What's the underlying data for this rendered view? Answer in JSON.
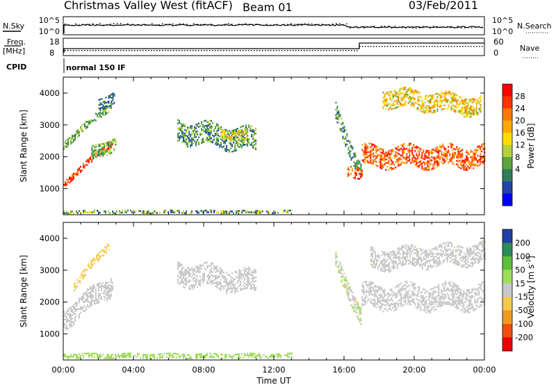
{
  "header": {
    "station": "Christmas Valley West (fitACF)",
    "beam": "Beam 01",
    "date": "03/Feb/2011"
  },
  "top_panels": {
    "nsky_label": "N.Sky",
    "nsearch_label": "N.Search",
    "nsky_ticks": [
      "10^5",
      "10^0"
    ],
    "nsearch_ticks": [
      "10^5",
      "10^0"
    ],
    "freq_label": "Freq.",
    "freq_unit": "[MHz]",
    "freq_ticks": [
      "18",
      "8"
    ],
    "nave_label": "Nave",
    "nave_ticks": [
      "60",
      "0"
    ],
    "cpid_label": "CPID",
    "cpid_value": "normal 150 IF"
  },
  "power_colorbar": {
    "label": "Power [dB]",
    "ticks": [
      "28",
      "24",
      "20",
      "16",
      "12",
      "8",
      "4"
    ],
    "colors": [
      "#ff0000",
      "#ff3300",
      "#ff7700",
      "#ffaa00",
      "#ffdd00",
      "#b5d23a",
      "#5aa53c",
      "#2e7d5a",
      "#2244aa",
      "#0000ff"
    ]
  },
  "velocity_colorbar": {
    "label": "Velocity [m s",
    "label_sup": "-1",
    "label_end": "]",
    "ticks": [
      "200",
      "100",
      "50",
      "15",
      "-15",
      "-50",
      "-100",
      "-200"
    ],
    "colors": [
      "#1f3fa6",
      "#2e8b57",
      "#5cbf3a",
      "#9fde5a",
      "#c8c8c8",
      "#f6c94c",
      "#f29a1f",
      "#f24d10",
      "#ee0000"
    ]
  },
  "chart_data": [
    {
      "type": "heatmap",
      "name": "power",
      "title": "",
      "xlabel": "",
      "ylabel": "Slant Range [km]",
      "xlim": [
        0,
        24
      ],
      "ylim": [
        180,
        4500
      ],
      "yticks": [
        "4000",
        "3000",
        "2000",
        "1000"
      ],
      "ytick_values": [
        4000,
        3000,
        2000,
        1000
      ],
      "colorbar": "Power [dB]",
      "clim": [
        0,
        30
      ],
      "regions": [
        {
          "t": [
            0.0,
            2.8
          ],
          "r0": [
            1150,
            2450
          ],
          "r1": [
            1250,
            2650
          ],
          "w": 200,
          "v": 26,
          "dv": 4
        },
        {
          "t": [
            0.0,
            2.7
          ],
          "r0": [
            2350,
            3600
          ],
          "r1": [
            2450,
            3750
          ],
          "w": 220,
          "v": 10,
          "dv": 4
        },
        {
          "t": [
            1.6,
            3.0
          ],
          "r0": [
            2050,
            2450
          ],
          "r1": [
            2050,
            2600
          ],
          "w": 400,
          "v": 11,
          "dv": 5
        },
        {
          "t": [
            2.0,
            2.9
          ],
          "r0": [
            3600,
            3900
          ],
          "r1": [
            3600,
            4200
          ],
          "w": 350,
          "v": 6,
          "dv": 3
        },
        {
          "t": [
            6.5,
            11.0
          ],
          "r0": [
            2800,
            2500
          ],
          "r1": [
            2800,
            2500
          ],
          "w": 700,
          "v": 9,
          "dv": 5
        },
        {
          "t": [
            9.0,
            10.5
          ],
          "r0": [
            2700,
            2650
          ],
          "r1": [
            2700,
            2650
          ],
          "w": 300,
          "v": 16,
          "dv": 5
        },
        {
          "t": [
            15.5,
            17.0
          ],
          "r0": [
            3400,
            1350
          ],
          "r1": [
            3400,
            1350
          ],
          "w": 500,
          "v": 8,
          "dv": 5
        },
        {
          "t": [
            16.2,
            17.0
          ],
          "r0": [
            1600,
            1400
          ],
          "r1": [
            1600,
            1400
          ],
          "w": 350,
          "v": 24,
          "dv": 5
        },
        {
          "t": [
            17.0,
            24.0
          ],
          "r0": [
            2000,
            2000
          ],
          "r1": [
            1900,
            1900
          ],
          "w": 650,
          "v": 24,
          "dv": 5
        },
        {
          "t": [
            18.2,
            23.8
          ],
          "r0": [
            3850,
            3550
          ],
          "r1": [
            3850,
            3550
          ],
          "w": 550,
          "v": 17,
          "dv": 6
        },
        {
          "t": [
            0.0,
            13.0
          ],
          "r0": [
            260,
            260
          ],
          "r1": [
            260,
            260
          ],
          "w": 90,
          "v": 10,
          "dv": 7
        }
      ]
    },
    {
      "type": "heatmap",
      "name": "velocity",
      "title": "",
      "xlabel": "Time UT",
      "ylabel": "Slant Range [km]",
      "xlim": [
        0,
        24
      ],
      "ylim": [
        180,
        4500
      ],
      "xticks": [
        "00:00",
        "04:00",
        "08:00",
        "12:00",
        "16:00",
        "20:00",
        "00:00"
      ],
      "xtick_values": [
        0,
        4,
        8,
        12,
        16,
        20,
        24
      ],
      "yticks": [
        "4000",
        "3000",
        "2000",
        "1000"
      ],
      "ytick_values": [
        4000,
        3000,
        2000,
        1000
      ],
      "colorbar": "Velocity [m s-1]",
      "clim": [
        -200,
        200
      ],
      "regions": [
        {
          "t": [
            0.0,
            2.8
          ],
          "r0": [
            1450,
            2550
          ],
          "r1": [
            1550,
            2700
          ],
          "w": 600,
          "v": 0,
          "dv": 10
        },
        {
          "t": [
            0.6,
            2.6
          ],
          "r0": [
            2500,
            3800
          ],
          "r1": [
            2500,
            4200
          ],
          "w": 250,
          "v": -40,
          "dv": 15
        },
        {
          "t": [
            6.5,
            11.0
          ],
          "r0": [
            2900,
            2600
          ],
          "r1": [
            2900,
            2600
          ],
          "w": 700,
          "v": -8,
          "dv": 12
        },
        {
          "t": [
            15.5,
            17.0
          ],
          "r0": [
            3300,
            1400
          ],
          "r1": [
            3300,
            1400
          ],
          "w": 500,
          "v": 10,
          "dv": 40
        },
        {
          "t": [
            17.0,
            24.0
          ],
          "r0": [
            2150,
            2150
          ],
          "r1": [
            2050,
            2050
          ],
          "w": 750,
          "v": 0,
          "dv": 8
        },
        {
          "t": [
            17.5,
            24.0
          ],
          "r0": [
            3300,
            3500
          ],
          "r1": [
            3300,
            3500
          ],
          "w": 600,
          "v": 8,
          "dv": 15
        },
        {
          "t": [
            0.0,
            13.0
          ],
          "r0": [
            290,
            290
          ],
          "r1": [
            290,
            290
          ],
          "w": 130,
          "v": 40,
          "dv": 20
        }
      ]
    }
  ]
}
